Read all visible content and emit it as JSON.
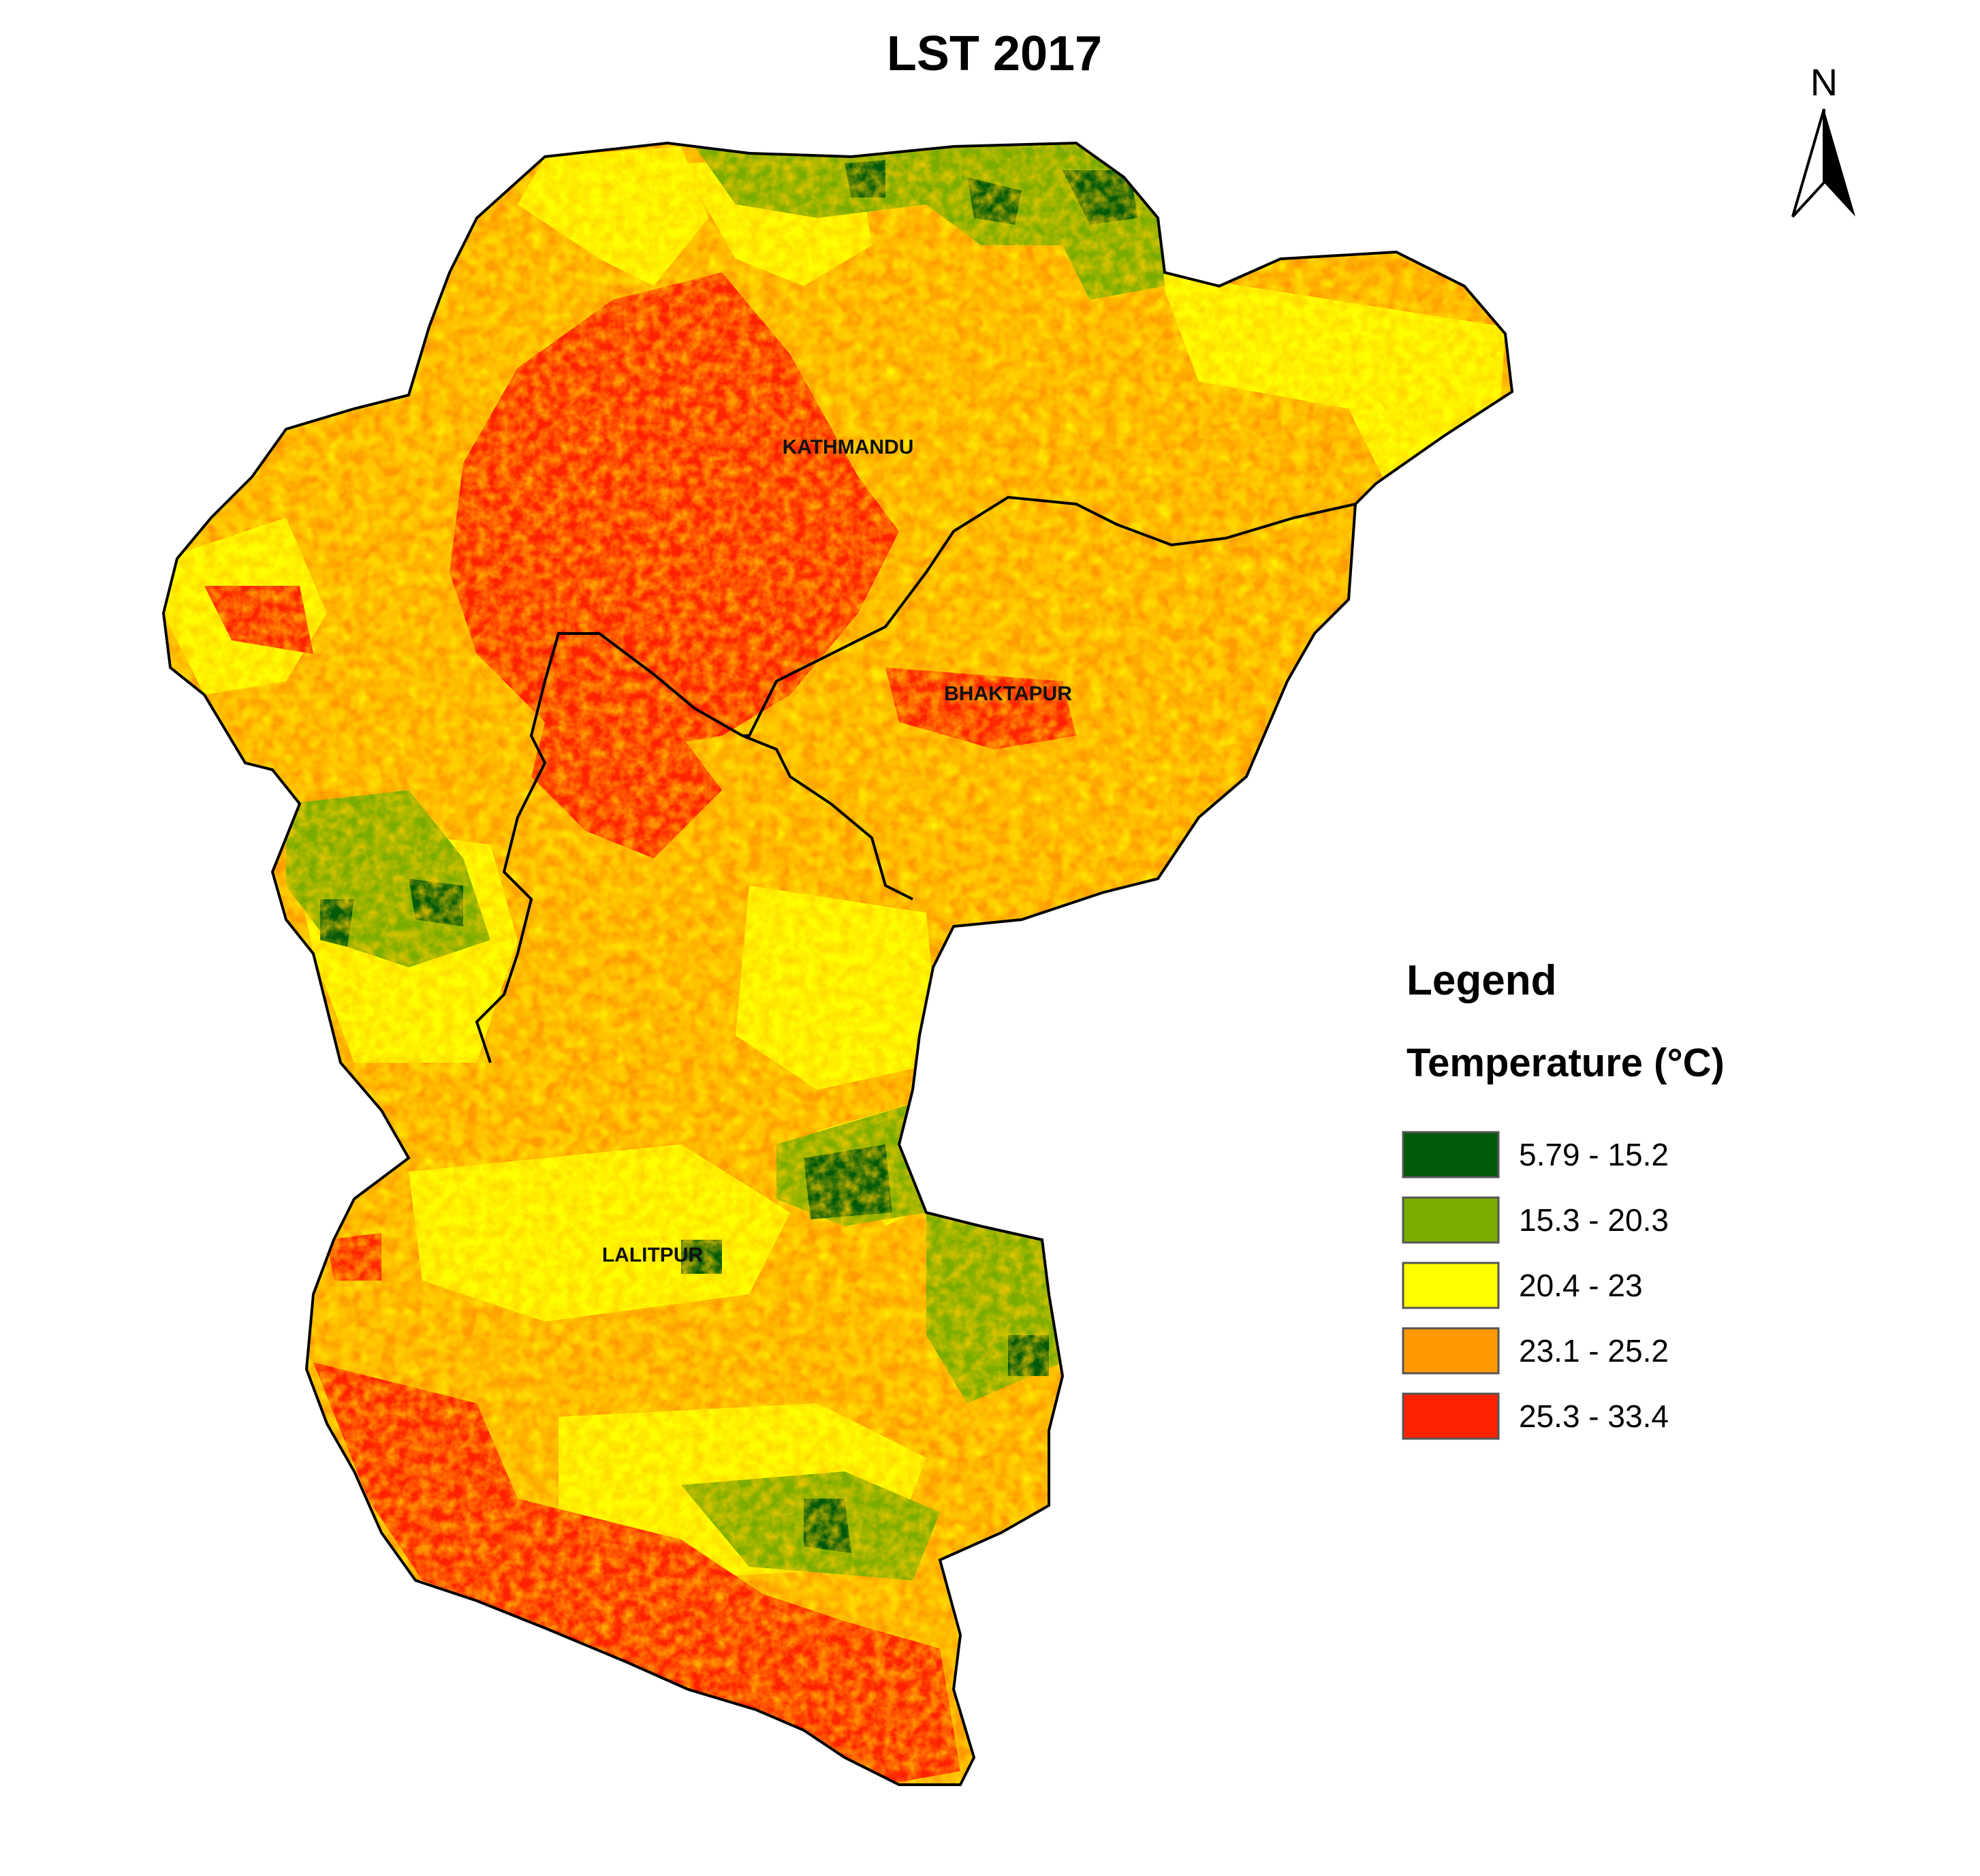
{
  "title": "LST 2017",
  "north_arrow": {
    "letter": "N"
  },
  "districts": [
    {
      "id": "kathmandu",
      "label": "KATHMANDU"
    },
    {
      "id": "bhaktapur",
      "label": "BHAKTAPUR"
    },
    {
      "id": "lalitpur",
      "label": "LALITPUR"
    }
  ],
  "legend": {
    "title": "Legend",
    "subtitle": "Temperature (°C)",
    "classes": [
      {
        "label": "5.79 - 15.2",
        "color": "#005a0a"
      },
      {
        "label": "15.3 - 20.3",
        "color": "#7aad00"
      },
      {
        "label": "20.4 - 23",
        "color": "#ffff00"
      },
      {
        "label": "23.1 - 25.2",
        "color": "#ff9900"
      },
      {
        "label": "25.3 - 33.4",
        "color": "#ff2200"
      }
    ]
  }
}
